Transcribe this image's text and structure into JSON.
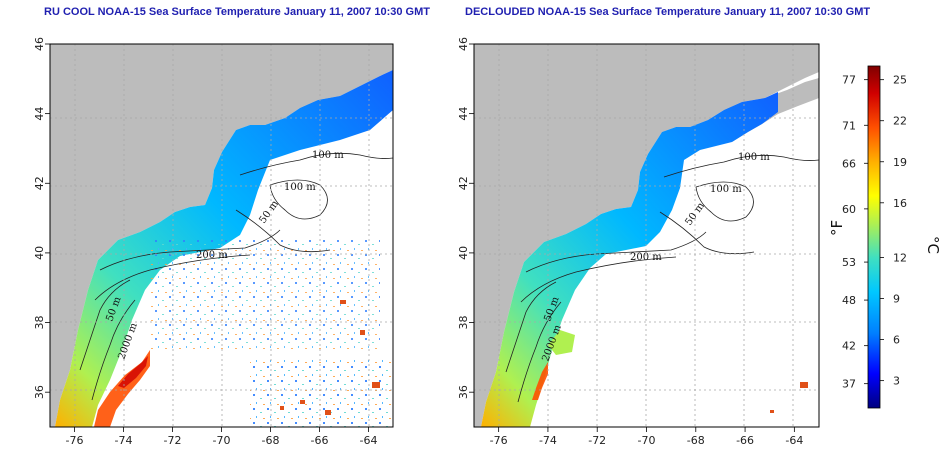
{
  "titles": {
    "left": "RU COOL NOAA-15 Sea Surface Temperature January 11, 2007 10:30 GMT",
    "right": "DECLOUDED NOAA-15 Sea Surface Temperature January 11, 2007 10:30 GMT"
  },
  "axes": {
    "x_ticks": [
      "-76",
      "-74",
      "-72",
      "-70",
      "-68",
      "-66",
      "-64"
    ],
    "y_ticks": [
      "36",
      "38",
      "40",
      "42",
      "44",
      "46"
    ],
    "lon_range": [
      -77,
      -63
    ],
    "lat_range": [
      35,
      46
    ]
  },
  "contour_labels": {
    "c100a": "100 m",
    "c100b": "100 m",
    "c50a": "50 m",
    "c200": "200 m",
    "c50b": "50 m",
    "c2000": "2000 m"
  },
  "colorbar": {
    "fahrenheit_ticks": [
      "77",
      "71",
      "66",
      "60",
      "53",
      "48",
      "42",
      "37"
    ],
    "celsius_ticks": [
      "25",
      "22",
      "19",
      "16",
      "12",
      "9",
      "6",
      "3"
    ],
    "unit_f": "°F",
    "unit_c": "°C",
    "colors": [
      "#000080",
      "#0000ff",
      "#0080ff",
      "#00c8ff",
      "#40e0c0",
      "#b0f050",
      "#ffff00",
      "#ffb000",
      "#ff5000",
      "#d00000",
      "#800000"
    ]
  },
  "colors": {
    "land": "#bcbcbc",
    "grid": "#a8a8a8"
  }
}
